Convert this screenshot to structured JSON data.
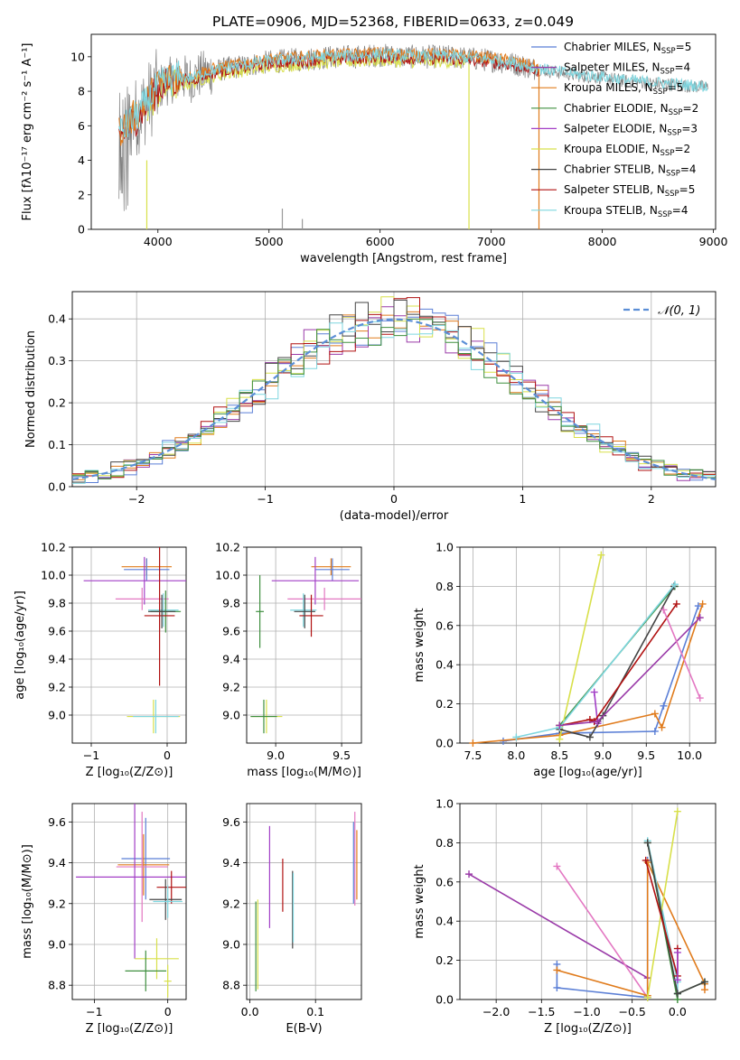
{
  "title": "PLATE=0906, MJD=52368, FIBERID=0633, z=0.049",
  "colors": {
    "chabrier_miles": "#5b7fd6",
    "salpeter_miles": "#9a3aa8",
    "kroupa_miles": "#e07b1c",
    "chabrier_elodie": "#3f8f3f",
    "salpeter_elodie": "#a23ec6",
    "kroupa_elodie": "#d8e04a",
    "chabrier_stelib": "#444444",
    "salpeter_stelib": "#b01010",
    "kroupa_stelib": "#7ed6df",
    "pink": "#e377c2",
    "data_gray": "#808080",
    "normal_dash": "#5b8ed6"
  },
  "chart_data": [
    {
      "id": "spectrum",
      "type": "line",
      "title": "PLATE=0906, MJD=52368, FIBERID=0633, z=0.049",
      "xlabel": "wavelength [Angstrom, rest frame]",
      "ylabel": "Flux [fλ10⁻¹⁷ erg cm⁻² s⁻¹ A⁻¹]",
      "xlim": [
        3400,
        9020
      ],
      "ylim": [
        0,
        11.3
      ],
      "xticks": [
        4000,
        5000,
        6000,
        7000,
        8000,
        9000
      ],
      "yticks": [
        0,
        2,
        4,
        6,
        8,
        10
      ],
      "grid": false,
      "legend_position": "right",
      "legend": [
        {
          "label": "Chabrier MILES, N",
          "sub": "SSP",
          "eq": "=5",
          "color": "#5b7fd6"
        },
        {
          "label": "Salpeter MILES, N",
          "sub": "SSP",
          "eq": "=4",
          "color": "#9a3aa8"
        },
        {
          "label": "Kroupa MILES, N",
          "sub": "SSP",
          "eq": "=5",
          "color": "#e07b1c"
        },
        {
          "label": "Chabrier ELODIE, N",
          "sub": "SSP",
          "eq": "=2",
          "color": "#3f8f3f"
        },
        {
          "label": "Salpeter ELODIE, N",
          "sub": "SSP",
          "eq": "=3",
          "color": "#a23ec6"
        },
        {
          "label": "Kroupa ELODIE, N",
          "sub": "SSP",
          "eq": "=2",
          "color": "#d8e04a"
        },
        {
          "label": "Chabrier STELIB, N",
          "sub": "SSP",
          "eq": "=4",
          "color": "#444444"
        },
        {
          "label": "Salpeter STELIB, N",
          "sub": "SSP",
          "eq": "=5",
          "color": "#b01010"
        },
        {
          "label": "Kroupa STELIB, N",
          "sub": "SSP",
          "eq": "=4",
          "color": "#7ed6df"
        }
      ],
      "continuum": {
        "x": [
          3650,
          3800,
          3900,
          4000,
          4100,
          4200,
          4300,
          4400,
          4600,
          4800,
          5000,
          5200,
          5400,
          5600,
          5800,
          6000,
          6200,
          6400,
          6600,
          6800,
          7000,
          7200,
          7400,
          7600,
          7800,
          8000,
          8200,
          8400,
          8600,
          8800,
          9000
        ],
        "y": [
          5.5,
          6.5,
          7.3,
          8.2,
          8.6,
          8.8,
          8.7,
          9.0,
          9.3,
          9.5,
          9.7,
          9.8,
          9.9,
          10.0,
          10.0,
          10.1,
          10.0,
          10.0,
          10.0,
          9.9,
          9.8,
          9.6,
          9.3,
          9.1,
          8.9,
          8.8,
          8.6,
          8.5,
          8.4,
          8.3,
          8.2
        ]
      }
    },
    {
      "id": "residuals",
      "type": "histogram",
      "xlabel": "(data-model)/error",
      "ylabel": "Normed distribution",
      "xlim": [
        -2.5,
        2.5
      ],
      "ylim": [
        0,
        0.465
      ],
      "xticks": [
        -2,
        -1,
        0,
        1,
        2
      ],
      "yticks": [
        0.0,
        0.1,
        0.2,
        0.3,
        0.4
      ],
      "grid": true,
      "legend": [
        {
          "label": "𝒩(0, 1)",
          "style": "dashed",
          "color": "#5b8ed6"
        }
      ],
      "normal_curve": {
        "mean": 0,
        "sigma": 1
      },
      "bin_width": 0.1
    },
    {
      "id": "age_vs_Z",
      "type": "errorbar",
      "xlabel": "Z [log₁₀(Z/Z⊙)]",
      "ylabel": "age  [log₁₀(age/yr)]",
      "xlim": [
        -1.25,
        0.25
      ],
      "ylim": [
        8.8,
        10.2
      ],
      "xticks": [
        -1,
        0
      ],
      "yticks": [
        9.0,
        9.2,
        9.4,
        9.6,
        9.8,
        10.0,
        10.2
      ],
      "grid": true,
      "points": [
        {
          "x": -0.27,
          "y": 10.06,
          "xerr": 0.33,
          "yerr": 0.06,
          "color": "#e07b1c"
        },
        {
          "x": -0.27,
          "y": 10.04,
          "xerr": 0.3,
          "yerr": 0.08,
          "color": "#5b7fd6"
        },
        {
          "x": -0.3,
          "y": 9.96,
          "xerr": 0.8,
          "yerr": 0.17,
          "color": "#a23ec6"
        },
        {
          "x": -0.33,
          "y": 9.83,
          "xerr": 0.35,
          "yerr": 0.08,
          "color": "#e377c2"
        },
        {
          "x": -0.05,
          "y": 9.75,
          "xerr": 0.2,
          "yerr": 0.12,
          "color": "#7ed6df"
        },
        {
          "x": -0.02,
          "y": 9.74,
          "xerr": 0.2,
          "yerr": 0.15,
          "color": "#3f8f3f"
        },
        {
          "x": -0.1,
          "y": 9.71,
          "xerr": 0.2,
          "yerr": 0.5,
          "color": "#b01010"
        },
        {
          "x": -0.07,
          "y": 9.74,
          "xerr": 0.18,
          "yerr": 0.12,
          "color": "#444444"
        },
        {
          "x": -0.18,
          "y": 8.99,
          "xerr": 0.35,
          "yerr": 0.12,
          "color": "#d8e04a"
        },
        {
          "x": -0.15,
          "y": 8.99,
          "xerr": 0.3,
          "yerr": 0.12,
          "color": "#7ed6df"
        }
      ]
    },
    {
      "id": "age_vs_mass",
      "type": "errorbar",
      "xlabel": "mass [log₁₀(M/M⊙)]",
      "ylabel": "",
      "xlim": [
        8.78,
        9.65
      ],
      "ylim": [
        8.8,
        10.2
      ],
      "xticks": [
        9.0,
        9.5
      ],
      "yticks": [
        9.0,
        9.2,
        9.4,
        9.6,
        9.8,
        10.0,
        10.2
      ],
      "grid": true,
      "points": [
        {
          "x": 9.42,
          "y": 10.06,
          "xerr": 0.15,
          "yerr": 0.06,
          "color": "#e07b1c"
        },
        {
          "x": 9.43,
          "y": 10.04,
          "xerr": 0.13,
          "yerr": 0.08,
          "color": "#5b7fd6"
        },
        {
          "x": 9.3,
          "y": 9.96,
          "xerr": 0.33,
          "yerr": 0.17,
          "color": "#a23ec6"
        },
        {
          "x": 9.37,
          "y": 9.83,
          "xerr": 0.28,
          "yerr": 0.08,
          "color": "#e377c2"
        },
        {
          "x": 9.21,
          "y": 9.75,
          "xerr": 0.1,
          "yerr": 0.12,
          "color": "#7ed6df"
        },
        {
          "x": 8.88,
          "y": 9.74,
          "xerr": 0.03,
          "yerr": 0.26,
          "color": "#3f8f3f"
        },
        {
          "x": 9.27,
          "y": 9.71,
          "xerr": 0.09,
          "yerr": 0.15,
          "color": "#b01010"
        },
        {
          "x": 9.22,
          "y": 9.74,
          "xerr": 0.08,
          "yerr": 0.12,
          "color": "#444444"
        },
        {
          "x": 8.93,
          "y": 8.99,
          "xerr": 0.12,
          "yerr": 0.12,
          "color": "#d8e04a"
        },
        {
          "x": 8.91,
          "y": 8.99,
          "xerr": 0.1,
          "yerr": 0.12,
          "color": "#3f8f3f"
        }
      ]
    },
    {
      "id": "weight_vs_age",
      "type": "line",
      "xlabel": "age  [log₁₀(age/yr)]",
      "ylabel": "mass weight",
      "xlim": [
        7.35,
        10.3
      ],
      "ylim": [
        0.0,
        1.0
      ],
      "xticks": [
        7.5,
        8.0,
        8.5,
        9.0,
        9.5,
        10.0
      ],
      "yticks": [
        0.0,
        0.2,
        0.4,
        0.6,
        0.8,
        1.0
      ],
      "grid": true,
      "series": [
        {
          "color": "#5b7fd6",
          "x": [
            7.85,
            8.5,
            9.6,
            9.7,
            10.1
          ],
          "y": [
            0.01,
            0.05,
            0.06,
            0.19,
            0.7
          ]
        },
        {
          "color": "#e07b1c",
          "x": [
            7.5,
            8.5,
            9.6,
            9.68,
            10.15
          ],
          "y": [
            0.0,
            0.04,
            0.15,
            0.08,
            0.71
          ]
        },
        {
          "color": "#3f8f3f",
          "x": [
            8.5,
            9.83
          ],
          "y": [
            0.09,
            0.8
          ]
        },
        {
          "color": "#a23ec6",
          "x": [
            8.9,
            8.94
          ],
          "y": [
            0.26,
            0.1
          ]
        },
        {
          "color": "#d8e04a",
          "x": [
            8.5,
            8.98
          ],
          "y": [
            0.02,
            0.96
          ]
        },
        {
          "color": "#444444",
          "x": [
            8.5,
            8.85,
            9.0,
            9.82
          ],
          "y": [
            0.07,
            0.03,
            0.14,
            0.8
          ]
        },
        {
          "color": "#b01010",
          "x": [
            8.5,
            8.85,
            8.9,
            9.85
          ],
          "y": [
            0.09,
            0.12,
            0.11,
            0.71
          ]
        },
        {
          "color": "#7ed6df",
          "x": [
            8.0,
            8.5,
            9.83
          ],
          "y": [
            0.03,
            0.08,
            0.81
          ]
        },
        {
          "color": "#9a3aa8",
          "x": [
            8.5,
            8.94,
            10.12
          ],
          "y": [
            0.09,
            0.11,
            0.64
          ]
        },
        {
          "color": "#e377c2",
          "x": [
            9.7,
            10.12
          ],
          "y": [
            0.68,
            0.23
          ]
        }
      ]
    },
    {
      "id": "mass_vs_Z",
      "type": "errorbar",
      "xlabel": "Z [log₁₀(Z/Z⊙)]",
      "ylabel": "mass [log₁₀(M/M⊙)]",
      "xlim": [
        -1.3,
        0.25
      ],
      "ylim": [
        8.73,
        9.69
      ],
      "xticks": [
        -1,
        0
      ],
      "yticks": [
        8.8,
        9.0,
        9.2,
        9.4,
        9.6
      ],
      "grid": true,
      "points": [
        {
          "x": -0.3,
          "y": 9.42,
          "xerr": 0.33,
          "yerr": 0.2,
          "color": "#5b7fd6"
        },
        {
          "x": -0.33,
          "y": 9.39,
          "xerr": 0.35,
          "yerr": 0.15,
          "color": "#e07b1c"
        },
        {
          "x": -0.35,
          "y": 9.38,
          "xerr": 0.35,
          "yerr": 0.27,
          "color": "#e377c2"
        },
        {
          "x": -0.45,
          "y": 9.33,
          "xerr": 0.8,
          "yerr": 0.4,
          "color": "#a23ec6"
        },
        {
          "x": 0.05,
          "y": 9.28,
          "xerr": 0.2,
          "yerr": 0.08,
          "color": "#b01010"
        },
        {
          "x": -0.03,
          "y": 9.22,
          "xerr": 0.22,
          "yerr": 0.1,
          "color": "#444444"
        },
        {
          "x": 0.0,
          "y": 9.21,
          "xerr": 0.2,
          "yerr": 0.08,
          "color": "#7ed6df"
        },
        {
          "x": -0.15,
          "y": 8.93,
          "xerr": 0.3,
          "yerr": 0.1,
          "color": "#d8e04a"
        },
        {
          "x": -0.3,
          "y": 8.87,
          "xerr": 0.28,
          "yerr": 0.1,
          "color": "#3f8f3f"
        },
        {
          "x": 0.0,
          "y": 8.82,
          "xerr": 0.05,
          "yerr": 0.08,
          "color": "#d8e04a"
        }
      ]
    },
    {
      "id": "mass_vs_ebv",
      "type": "errorbar",
      "xlabel": "E(B-V)",
      "ylabel": "",
      "xlim": [
        -0.005,
        0.17
      ],
      "ylim": [
        8.73,
        9.69
      ],
      "xticks": [
        0.0,
        0.1
      ],
      "yticks": [
        8.8,
        9.0,
        9.2,
        9.4,
        9.6
      ],
      "grid": true,
      "points": [
        {
          "x": 0.16,
          "y": 9.42,
          "xerr": 0,
          "yerr": 0.23,
          "color": "#e377c2"
        },
        {
          "x": 0.163,
          "y": 9.39,
          "xerr": 0,
          "yerr": 0.17,
          "color": "#e07b1c"
        },
        {
          "x": 0.158,
          "y": 9.4,
          "xerr": 0,
          "yerr": 0.2,
          "color": "#5b7fd6"
        },
        {
          "x": 0.03,
          "y": 9.33,
          "xerr": 0,
          "yerr": 0.25,
          "color": "#a23ec6"
        },
        {
          "x": 0.05,
          "y": 9.29,
          "xerr": 0,
          "yerr": 0.13,
          "color": "#b01010"
        },
        {
          "x": 0.065,
          "y": 9.17,
          "xerr": 0,
          "yerr": 0.19,
          "color": "#444444"
        },
        {
          "x": 0.066,
          "y": 9.18,
          "xerr": 0,
          "yerr": 0.17,
          "color": "#7ed6df"
        },
        {
          "x": 0.012,
          "y": 9.0,
          "xerr": 0,
          "yerr": 0.22,
          "color": "#d8e04a"
        },
        {
          "x": 0.009,
          "y": 8.99,
          "xerr": 0,
          "yerr": 0.22,
          "color": "#3f8f3f"
        }
      ]
    },
    {
      "id": "weight_vs_Z",
      "type": "line",
      "xlabel": "Z [log₁₀(Z/Z⊙)]",
      "ylabel": "mass weight",
      "xlim": [
        -2.4,
        0.42
      ],
      "ylim": [
        0.0,
        1.0
      ],
      "xticks": [
        -2.0,
        -1.5,
        -1.0,
        -0.5,
        0.0
      ],
      "yticks": [
        0.0,
        0.2,
        0.4,
        0.6,
        0.8,
        1.0
      ],
      "grid": true,
      "series": [
        {
          "color": "#9a3aa8",
          "x": [
            -2.3,
            -0.33
          ],
          "y": [
            0.64,
            0.11
          ]
        },
        {
          "color": "#e377c2",
          "x": [
            -1.33,
            -0.33
          ],
          "y": [
            0.68,
            0.01
          ]
        },
        {
          "color": "#5b7fd6",
          "x": [
            -1.33,
            -1.33,
            -0.33,
            -0.33
          ],
          "y": [
            0.18,
            0.06,
            0.01,
            0.71
          ]
        },
        {
          "color": "#e07b1c",
          "x": [
            -1.33,
            -0.33,
            -0.33,
            0.3,
            0.3
          ],
          "y": [
            0.15,
            0.02,
            0.7,
            0.08,
            0.05
          ]
        },
        {
          "color": "#7ed6df",
          "x": [
            -0.33,
            0.0,
            0.0
          ],
          "y": [
            0.81,
            0.09,
            0.03
          ]
        },
        {
          "color": "#d8e04a",
          "x": [
            -0.33,
            0.0
          ],
          "y": [
            0.01,
            0.96
          ]
        },
        {
          "color": "#3f8f3f",
          "x": [
            -0.33,
            0.0,
            0.0,
            0.3
          ],
          "y": [
            0.8,
            0.0,
            0.03,
            0.09
          ]
        },
        {
          "color": "#444444",
          "x": [
            -0.33,
            0.0,
            0.3
          ],
          "y": [
            0.8,
            0.03,
            0.09
          ]
        },
        {
          "color": "#b01010",
          "x": [
            -0.35,
            0.0,
            0.0
          ],
          "y": [
            0.71,
            0.12,
            0.26
          ]
        },
        {
          "color": "#a23ec6",
          "x": [
            0.0,
            0.0
          ],
          "y": [
            0.24,
            0.1
          ]
        }
      ]
    }
  ]
}
